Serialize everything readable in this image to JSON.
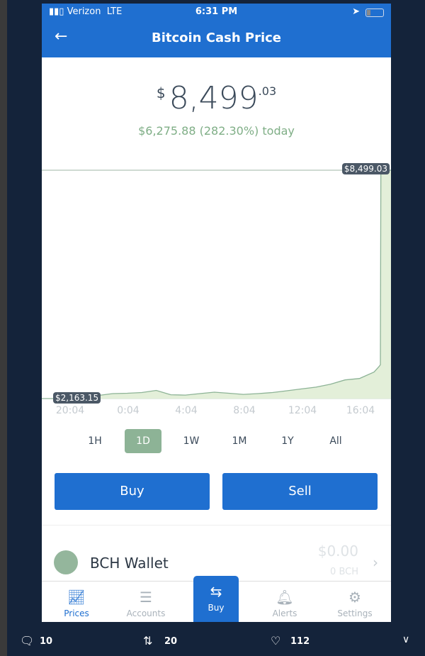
{
  "status_bar": {
    "carrier": "Verizon",
    "network": "LTE",
    "time": "6:31 PM"
  },
  "header": {
    "title": "Bitcoin Cash Price"
  },
  "price": {
    "currency": "$",
    "integer": "8,499",
    "cents": ".03",
    "change": "$6,275.88 (282.30%) today"
  },
  "chart_data": {
    "type": "area",
    "high_label": "$8,499.03",
    "low_label": "$2,163.15",
    "ylim": [
      2163.15,
      8499.03
    ],
    "x_ticks": [
      "20:04",
      "0:04",
      "4:04",
      "8:04",
      "12:04",
      "16:04"
    ],
    "x": [
      "20:04",
      "21:00",
      "22:00",
      "23:00",
      "0:00",
      "1:00",
      "2:00",
      "3:00",
      "4:00",
      "5:00",
      "6:00",
      "7:00",
      "8:00",
      "9:00",
      "10:00",
      "11:00",
      "12:00",
      "13:00",
      "14:00",
      "15:00",
      "16:00",
      "17:00",
      "17:20",
      "17:26",
      "17:28"
    ],
    "values": [
      2163,
      2175,
      2250,
      2300,
      2310,
      2330,
      2390,
      2270,
      2260,
      2300,
      2340,
      2310,
      2280,
      2300,
      2330,
      2380,
      2430,
      2480,
      2560,
      2680,
      2720,
      2900,
      3050,
      3100,
      8499.03
    ],
    "color": "#8db396"
  },
  "ranges": [
    "1H",
    "1D",
    "1W",
    "1M",
    "1Y",
    "All"
  ],
  "selected_range": "1D",
  "actions": {
    "buy": "Buy",
    "sell": "Sell"
  },
  "wallet": {
    "name": "BCH Wallet",
    "value": "$0.00",
    "amount": "0 BCH"
  },
  "nav": [
    {
      "label": "Prices",
      "icon": "chart-icon"
    },
    {
      "label": "Accounts",
      "icon": "list-icon"
    },
    {
      "label": "Buy",
      "icon": "exchange-icon"
    },
    {
      "label": "Alerts",
      "icon": "bell-icon"
    },
    {
      "label": "Settings",
      "icon": "gear-icon"
    }
  ],
  "tweet": {
    "replies": "10",
    "retweets": "20",
    "likes": "112"
  },
  "colors": {
    "brand": "#1f6fd0",
    "positive": "#7fae86",
    "background": "#14233a"
  }
}
